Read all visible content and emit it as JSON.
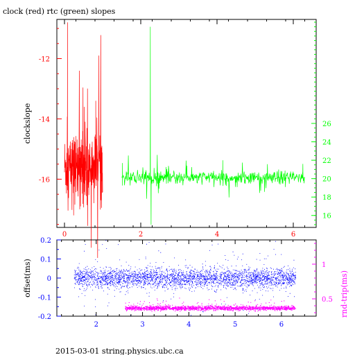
{
  "title": "clock (red) rtc (green) slopes",
  "footer": "2015-03-01 string.physics.ubc.ca",
  "colors": {
    "clock": "#ff0000",
    "rtc": "#00ff00",
    "offset": "#0000ff",
    "rndtrip": "#ff00ff",
    "frame": "#000000"
  },
  "chart_data": [
    {
      "type": "line",
      "title": "clock (red) rtc (green) slopes",
      "ylabel_left": "clockslope",
      "xlim": [
        -0.2,
        6.6
      ],
      "ylim_left": [
        -17.6,
        -10.7
      ],
      "ylim_right": [
        14.7,
        37.3
      ],
      "x_ticks": [
        0,
        2,
        4,
        6
      ],
      "y_ticks_left": [
        -16,
        -14,
        -12
      ],
      "y_ticks_right": [
        16,
        18,
        20,
        22,
        24,
        26
      ],
      "series": [
        {
          "name": "clock",
          "axis": "left",
          "color": "#ff0000",
          "x_range": [
            0,
            1.0
          ],
          "baseline": -15.6,
          "noise": 0.55,
          "spikes": [
            {
              "x": 0.08,
              "y": -10.8
            },
            {
              "x": 0.24,
              "y": -17.2
            },
            {
              "x": 0.52,
              "y": -13.6
            },
            {
              "x": 0.82,
              "y": -13.4
            },
            {
              "x": 0.4,
              "y": -17.0
            }
          ]
        },
        {
          "name": "rtc",
          "axis": "right",
          "color": "#00ff00",
          "x_range": [
            1.5,
            6.3
          ],
          "baseline": 20.1,
          "noise": 0.35,
          "spikes": [
            {
              "x": 2.25,
              "y": 36.5
            },
            {
              "x": 2.27,
              "y": 15.0
            },
            {
              "x": 1.52,
              "y": 21.7
            },
            {
              "x": 4.15,
              "y": 22.0
            },
            {
              "x": 6.25,
              "y": 21.6
            }
          ]
        }
      ]
    },
    {
      "type": "scatter",
      "ylabel_left": "offset(ms)",
      "ylabel_right": "rnd-trip(ms)",
      "xlim": [
        1.15,
        6.75
      ],
      "ylim_left": [
        -0.2,
        0.2
      ],
      "ylim_right": [
        0.25,
        1.35
      ],
      "x_ticks": [
        2,
        3,
        4,
        5,
        6
      ],
      "y_ticks_left": [
        -0.2,
        -0.1,
        0,
        0.1,
        0.2
      ],
      "y_ticks_right": [
        0.5,
        1
      ],
      "series": [
        {
          "name": "offset",
          "axis": "left",
          "color": "#0000ff",
          "x_range": [
            1.52,
            6.3
          ],
          "baseline": 0.0,
          "noise": 0.025
        },
        {
          "name": "rnd-trip",
          "axis": "right",
          "color": "#ff00ff",
          "x_range": [
            2.62,
            6.3
          ],
          "baseline": 0.37,
          "noise": 0.015
        }
      ]
    }
  ]
}
